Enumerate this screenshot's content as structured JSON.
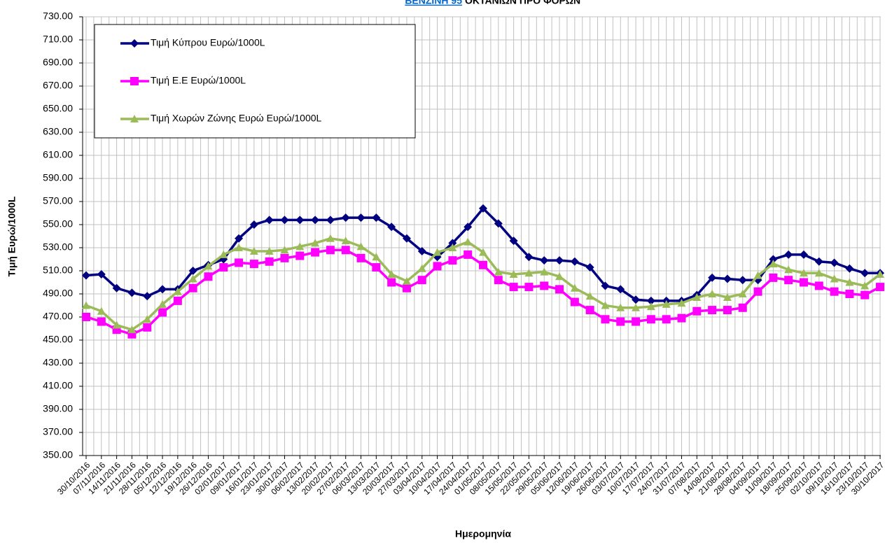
{
  "chart_data": {
    "type": "line",
    "title_link": "ΒΕΝΖΙΝΗ 95",
    "title": "ΟΚΤΑΝΙΩΝ ΠΡΟ ΦΟΡΩΝ",
    "y_label": "Τιμή Ευρώ/1000L",
    "x_label": "Ημερομηνία",
    "categories": [
      "30/10/2016",
      "07/11/2016",
      "14/11/2016",
      "21/11/2016",
      "28/11/2016",
      "05/12/2016",
      "12/12/2016",
      "19/12/2016",
      "26/12/2016",
      "02/01/2017",
      "09/01/2017",
      "16/01/2017",
      "23/01/2017",
      "30/01/2017",
      "06/02/2017",
      "13/02/2017",
      "20/02/2017",
      "27/02/2017",
      "06/03/2017",
      "13/03/2017",
      "20/03/2017",
      "27/03/2017",
      "03/04/2017",
      "10/04/2017",
      "17/04/2017",
      "24/04/2017",
      "01/05/2017",
      "08/05/2017",
      "15/05/2017",
      "22/05/2017",
      "29/05/2017",
      "05/06/2017",
      "12/06/2017",
      "19/06/2017",
      "26/06/2017",
      "03/07/2017",
      "10/07/2017",
      "17/07/2017",
      "24/07/2017",
      "31/07/2017",
      "07/08/2017",
      "14/08/2017",
      "21/08/2017",
      "28/08/2017",
      "04/09/2017",
      "11/09/2017",
      "18/09/2017",
      "25/09/2017",
      "02/10/2017",
      "09/10/2017",
      "16/10/2017",
      "23/10/2017",
      "30/10/2017"
    ],
    "series": [
      {
        "name": "Τιμή Κύπρου Ευρώ/1000L",
        "color": "#000080",
        "marker": "diamond",
        "values": [
          506,
          507,
          495,
          491,
          488,
          494,
          494,
          510,
          515,
          520,
          538,
          550,
          554,
          554,
          554,
          554,
          554,
          556,
          556,
          556,
          548,
          538,
          527,
          522,
          534,
          548,
          564,
          551,
          536,
          522,
          519,
          519,
          518,
          513,
          497,
          494,
          485,
          484,
          484,
          484,
          489,
          504,
          503,
          502,
          502,
          520,
          524,
          524,
          518,
          517,
          512,
          508,
          508
        ]
      },
      {
        "name": "Τιμή Ε.Ε Ευρώ/1000L",
        "color": "#ff00ff",
        "marker": "square",
        "values": [
          470,
          466,
          459,
          455,
          461,
          474,
          484,
          495,
          505,
          513,
          517,
          516,
          518,
          521,
          523,
          526,
          528,
          528,
          521,
          513,
          500,
          495,
          502,
          514,
          519,
          524,
          515,
          502,
          496,
          496,
          497,
          494,
          483,
          476,
          468,
          466,
          466,
          468,
          468,
          469,
          475,
          476,
          476,
          478,
          492,
          504,
          502,
          500,
          497,
          492,
          490,
          489,
          496
        ]
      },
      {
        "name": "Τιμή Χωρών Ζώνης Ευρώ Ευρώ/1000L",
        "color": "#9bbb59",
        "marker": "triangle",
        "values": [
          480,
          475,
          463,
          459,
          468,
          481,
          492,
          503,
          514,
          524,
          530,
          527,
          527,
          528,
          531,
          534,
          538,
          536,
          531,
          522,
          507,
          501,
          512,
          526,
          530,
          535,
          526,
          509,
          507,
          508,
          509,
          505,
          495,
          488,
          480,
          478,
          478,
          479,
          481,
          482,
          487,
          490,
          487,
          490,
          506,
          516,
          511,
          508,
          508,
          503,
          500,
          497,
          507
        ]
      }
    ],
    "ylim": [
      350,
      730
    ],
    "yticks": [
      {
        "value": 350,
        "label": "350.00"
      },
      {
        "value": 370,
        "label": "370.00"
      },
      {
        "value": 390,
        "label": "390.00"
      },
      {
        "value": 410,
        "label": "410.00"
      },
      {
        "value": 430,
        "label": "430.00"
      },
      {
        "value": 450,
        "label": "450.00"
      },
      {
        "value": 470,
        "label": "470.00"
      },
      {
        "value": 490,
        "label": "490.00"
      },
      {
        "value": 510,
        "label": "510.00"
      },
      {
        "value": 530,
        "label": "530.00"
      },
      {
        "value": 550,
        "label": "550.00"
      },
      {
        "value": 570,
        "label": "570.00"
      },
      {
        "value": 590,
        "label": "590.00"
      },
      {
        "value": 610,
        "label": "610.00"
      },
      {
        "value": 630,
        "label": "630.00"
      },
      {
        "value": 650,
        "label": "650.00"
      },
      {
        "value": 670,
        "label": "670.00"
      },
      {
        "value": 690,
        "label": "690.00"
      },
      {
        "value": 710,
        "label": "710.00"
      },
      {
        "value": 730,
        "label": "730.00"
      }
    ],
    "grid": true,
    "legend": "upper left"
  }
}
